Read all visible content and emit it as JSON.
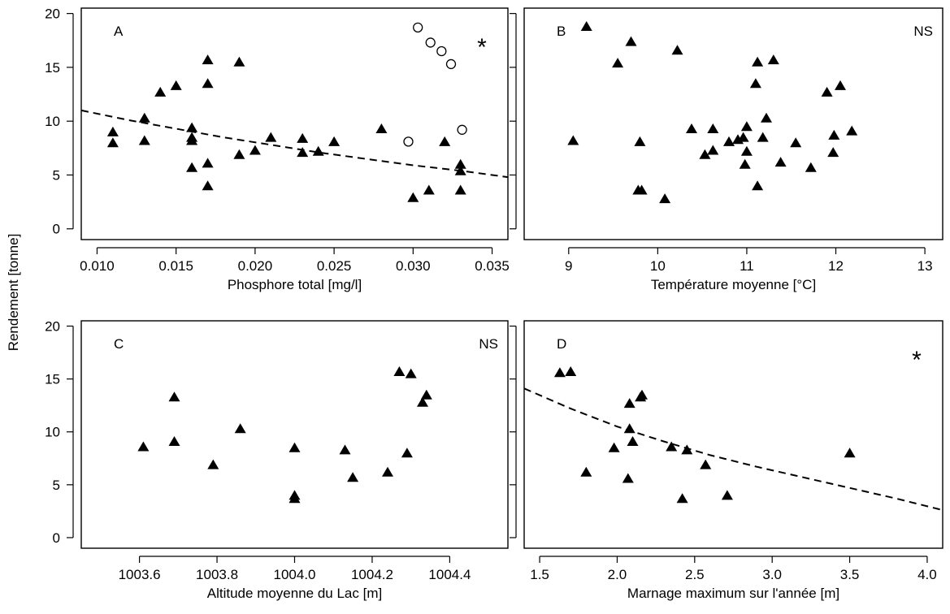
{
  "figure": {
    "ylabel": "Rendement [tonne]"
  },
  "chart_data": [
    {
      "type": "scatter",
      "panel": "A",
      "significance": "*",
      "xlabel": "Phosphore total [mg/l]",
      "ylabel": "Rendement [tonne]",
      "xlim": [
        0.009,
        0.036
      ],
      "ylim": [
        -1,
        20.5
      ],
      "xticks": [
        0.01,
        0.015,
        0.02,
        0.025,
        0.03,
        0.035
      ],
      "xtick_labels": [
        "0.010",
        "0.015",
        "0.020",
        "0.025",
        "0.030",
        "0.035"
      ],
      "yticks": [
        0,
        5,
        10,
        15,
        20
      ],
      "ytick_labels": [
        "0",
        "5",
        "10",
        "15",
        "20"
      ],
      "show_y_labels": true,
      "series": [
        {
          "marker": "triangle",
          "points": [
            [
              0.011,
              9.0
            ],
            [
              0.011,
              8.0
            ],
            [
              0.013,
              10.3
            ],
            [
              0.013,
              8.2
            ],
            [
              0.014,
              12.7
            ],
            [
              0.015,
              13.3
            ],
            [
              0.016,
              9.4
            ],
            [
              0.016,
              8.5
            ],
            [
              0.016,
              8.2
            ],
            [
              0.016,
              5.7
            ],
            [
              0.017,
              15.7
            ],
            [
              0.017,
              13.5
            ],
            [
              0.017,
              6.1
            ],
            [
              0.017,
              4.0
            ],
            [
              0.019,
              15.5
            ],
            [
              0.019,
              6.9
            ],
            [
              0.02,
              7.3
            ],
            [
              0.021,
              8.5
            ],
            [
              0.023,
              8.4
            ],
            [
              0.023,
              7.1
            ],
            [
              0.024,
              7.2
            ],
            [
              0.025,
              8.1
            ],
            [
              0.028,
              9.3
            ],
            [
              0.03,
              2.9
            ],
            [
              0.031,
              3.6
            ],
            [
              0.032,
              8.1
            ],
            [
              0.033,
              6.0
            ],
            [
              0.033,
              5.4
            ],
            [
              0.033,
              3.6
            ]
          ]
        },
        {
          "marker": "open-circle",
          "points": [
            [
              0.0303,
              18.7
            ],
            [
              0.0311,
              17.3
            ],
            [
              0.0318,
              16.5
            ],
            [
              0.0324,
              15.3
            ],
            [
              0.0331,
              9.2
            ],
            [
              0.0297,
              8.1
            ]
          ]
        }
      ],
      "fit": {
        "style": "dashed",
        "points": [
          [
            0.009,
            11.0
          ],
          [
            0.012,
            10.1
          ],
          [
            0.015,
            9.3
          ],
          [
            0.018,
            8.5
          ],
          [
            0.021,
            7.8
          ],
          [
            0.024,
            7.1
          ],
          [
            0.027,
            6.5
          ],
          [
            0.03,
            5.9
          ],
          [
            0.033,
            5.4
          ],
          [
            0.036,
            4.8
          ]
        ]
      }
    },
    {
      "type": "scatter",
      "panel": "B",
      "significance": "NS",
      "xlabel": "Température moyenne [°C]",
      "ylabel": "",
      "xlim": [
        8.5,
        13.2
      ],
      "ylim": [
        -1,
        20.5
      ],
      "xticks": [
        9,
        10,
        11,
        12,
        13
      ],
      "xtick_labels": [
        "9",
        "10",
        "11",
        "12",
        "13"
      ],
      "yticks": [
        0,
        5,
        10,
        15,
        20
      ],
      "ytick_labels": [
        "0",
        "5",
        "10",
        "15",
        "20"
      ],
      "show_y_labels": false,
      "series": [
        {
          "marker": "triangle",
          "points": [
            [
              9.05,
              8.2
            ],
            [
              9.2,
              18.8
            ],
            [
              9.55,
              15.4
            ],
            [
              9.7,
              17.4
            ],
            [
              9.78,
              3.6
            ],
            [
              9.8,
              8.1
            ],
            [
              9.82,
              3.6
            ],
            [
              10.08,
              2.8
            ],
            [
              10.22,
              16.6
            ],
            [
              10.38,
              9.3
            ],
            [
              10.53,
              6.9
            ],
            [
              10.62,
              7.3
            ],
            [
              10.62,
              9.3
            ],
            [
              10.8,
              8.1
            ],
            [
              10.9,
              8.3
            ],
            [
              10.96,
              8.5
            ],
            [
              11.0,
              9.5
            ],
            [
              11.0,
              7.2
            ],
            [
              10.98,
              6.0
            ],
            [
              11.1,
              13.5
            ],
            [
              11.12,
              15.5
            ],
            [
              11.12,
              4.0
            ],
            [
              11.18,
              8.5
            ],
            [
              11.22,
              10.3
            ],
            [
              11.3,
              15.7
            ],
            [
              11.38,
              6.2
            ],
            [
              11.55,
              8.0
            ],
            [
              11.72,
              5.7
            ],
            [
              11.9,
              12.7
            ],
            [
              11.97,
              7.1
            ],
            [
              11.98,
              8.7
            ],
            [
              12.05,
              13.3
            ],
            [
              12.18,
              9.1
            ]
          ]
        }
      ]
    },
    {
      "type": "scatter",
      "panel": "C",
      "significance": "NS",
      "xlabel": "Altitude moyenne du Lac [m]",
      "ylabel": "Rendement [tonne]",
      "xlim": [
        1003.45,
        1004.55
      ],
      "ylim": [
        -1,
        20.5
      ],
      "xticks": [
        1003.6,
        1003.8,
        1004.0,
        1004.2,
        1004.4
      ],
      "xtick_labels": [
        "1003.6",
        "1003.8",
        "1004.0",
        "1004.2",
        "1004.4"
      ],
      "yticks": [
        0,
        5,
        10,
        15,
        20
      ],
      "ytick_labels": [
        "0",
        "5",
        "10",
        "15",
        "20"
      ],
      "show_y_labels": true,
      "series": [
        {
          "marker": "triangle",
          "points": [
            [
              1003.61,
              8.6
            ],
            [
              1003.69,
              13.3
            ],
            [
              1003.69,
              9.1
            ],
            [
              1003.79,
              6.9
            ],
            [
              1003.86,
              10.3
            ],
            [
              1004.0,
              8.5
            ],
            [
              1004.0,
              4.0
            ],
            [
              1004.0,
              3.7
            ],
            [
              1004.13,
              8.3
            ],
            [
              1004.15,
              5.7
            ],
            [
              1004.24,
              6.2
            ],
            [
              1004.27,
              15.7
            ],
            [
              1004.29,
              8.0
            ],
            [
              1004.3,
              15.5
            ],
            [
              1004.33,
              12.8
            ],
            [
              1004.34,
              13.5
            ]
          ]
        }
      ]
    },
    {
      "type": "scatter",
      "panel": "D",
      "significance": "*",
      "xlabel": "Marnage maximum sur l'année [m]",
      "ylabel": "",
      "xlim": [
        1.4,
        4.1
      ],
      "ylim": [
        -1,
        20.5
      ],
      "xticks": [
        1.5,
        2.0,
        2.5,
        3.0,
        3.5,
        4.0
      ],
      "xtick_labels": [
        "1.5",
        "2.0",
        "2.5",
        "3.0",
        "3.5",
        "4.0"
      ],
      "yticks": [
        0,
        5,
        10,
        15,
        20
      ],
      "ytick_labels": [
        "0",
        "5",
        "10",
        "15",
        "20"
      ],
      "show_y_labels": false,
      "series": [
        {
          "marker": "triangle",
          "points": [
            [
              1.63,
              15.6
            ],
            [
              1.7,
              15.7
            ],
            [
              1.8,
              6.2
            ],
            [
              1.98,
              8.5
            ],
            [
              2.07,
              5.6
            ],
            [
              2.08,
              12.7
            ],
            [
              2.08,
              10.3
            ],
            [
              2.1,
              9.1
            ],
            [
              2.15,
              13.3
            ],
            [
              2.16,
              13.5
            ],
            [
              2.35,
              8.6
            ],
            [
              2.42,
              3.7
            ],
            [
              2.45,
              8.3
            ],
            [
              2.57,
              6.9
            ],
            [
              2.71,
              4.0
            ],
            [
              3.5,
              8.0
            ]
          ]
        }
      ],
      "fit": {
        "style": "dashed",
        "points": [
          [
            1.4,
            14.1
          ],
          [
            1.7,
            12.2
          ],
          [
            2.0,
            10.5
          ],
          [
            2.3,
            9.1
          ],
          [
            2.6,
            7.8
          ],
          [
            2.9,
            6.7
          ],
          [
            3.2,
            5.7
          ],
          [
            3.5,
            4.7
          ],
          [
            3.8,
            3.7
          ],
          [
            4.1,
            2.6
          ]
        ]
      }
    }
  ]
}
